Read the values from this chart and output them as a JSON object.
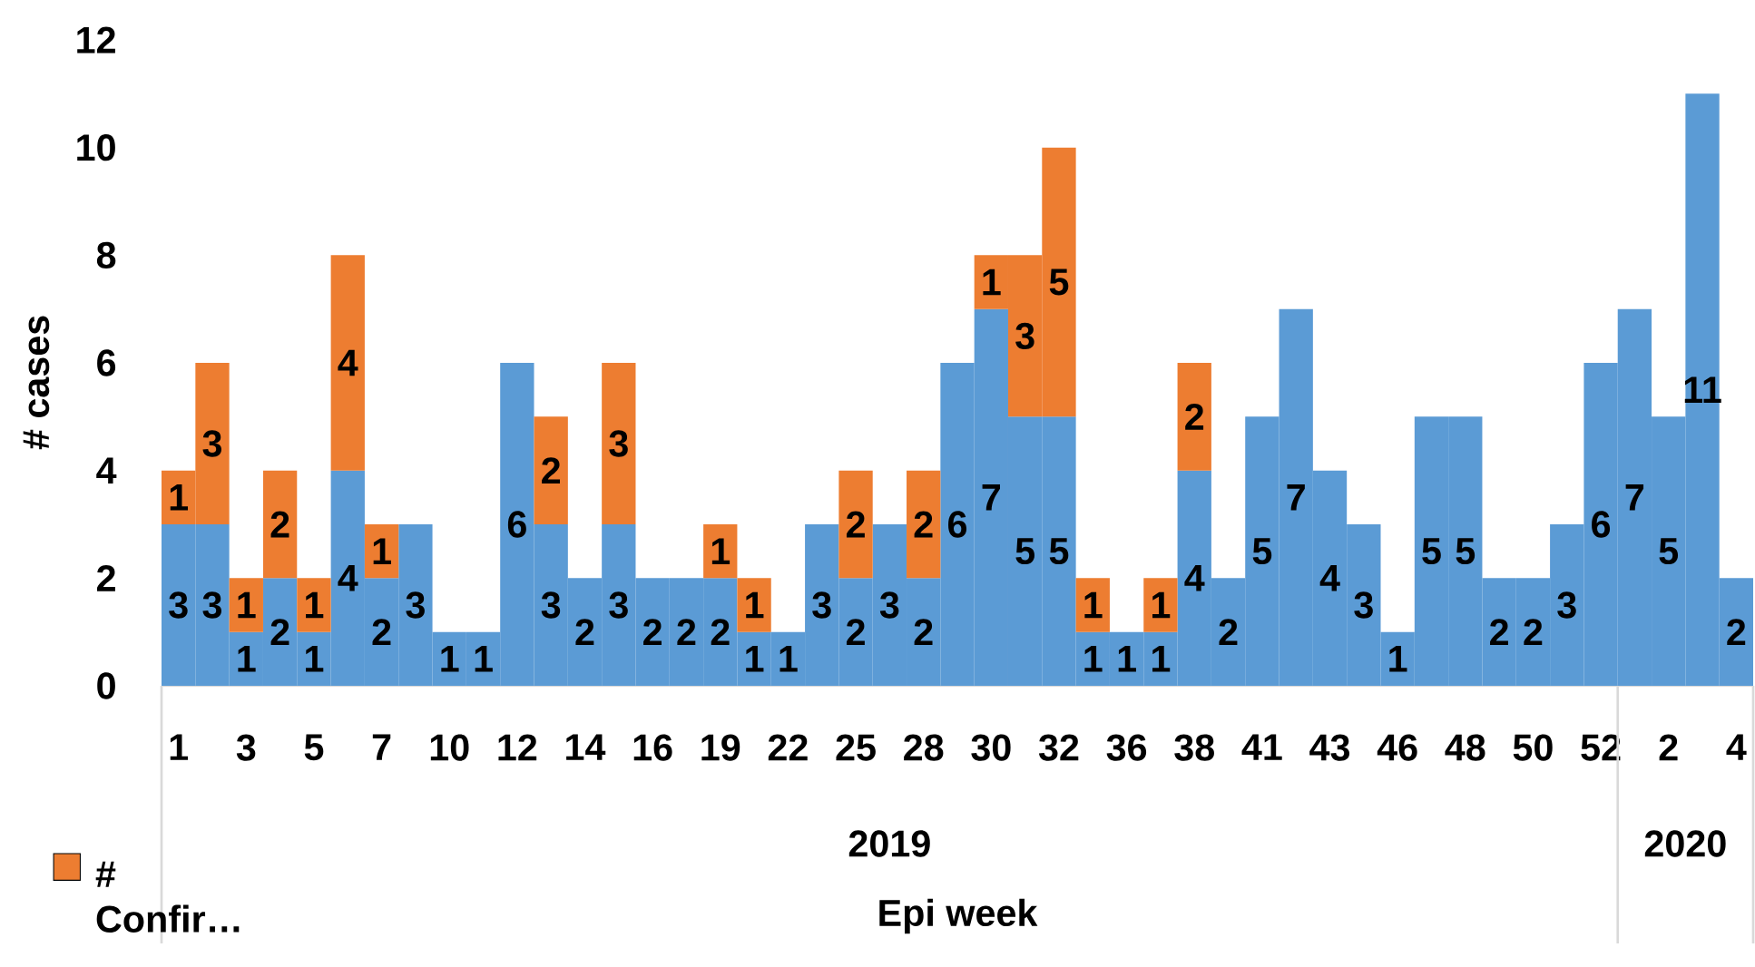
{
  "chart_data": {
    "type": "bar",
    "stacked": true,
    "xlabel": "Epi week",
    "ylabel": "# cases",
    "categories": [
      "1",
      null,
      "3",
      null,
      "5",
      null,
      "7",
      null,
      "10",
      null,
      "12",
      null,
      "14",
      null,
      "16",
      null,
      "19",
      null,
      "22",
      null,
      "25",
      null,
      "28",
      null,
      "30",
      null,
      "32",
      null,
      "36",
      null,
      "38",
      null,
      "41",
      null,
      "43",
      null,
      "46",
      null,
      "48",
      null,
      "50",
      null,
      "52",
      null,
      "2",
      null,
      "4"
    ],
    "series": [
      {
        "color": "#5b9bd5",
        "values": [
          3,
          3,
          1,
          2,
          1,
          4,
          2,
          3,
          1,
          1,
          6,
          3,
          2,
          3,
          2,
          2,
          2,
          1,
          1,
          3,
          2,
          3,
          2,
          6,
          7,
          5,
          5,
          1,
          1,
          1,
          4,
          2,
          5,
          7,
          4,
          3,
          1,
          5,
          5,
          2,
          2,
          3,
          6,
          7,
          5,
          11,
          2
        ]
      },
      {
        "name": "# Confir…",
        "color": "#ed7d31",
        "values": [
          1,
          3,
          1,
          2,
          1,
          4,
          1,
          null,
          null,
          null,
          null,
          2,
          null,
          3,
          null,
          null,
          1,
          1,
          null,
          null,
          2,
          null,
          2,
          null,
          1,
          3,
          5,
          1,
          null,
          1,
          2,
          null,
          null,
          null,
          null,
          null,
          null,
          null,
          null,
          null,
          null,
          null,
          null,
          null,
          null,
          null,
          null
        ]
      }
    ],
    "ylim": [
      0,
      12
    ],
    "yticks": [
      0,
      2,
      4,
      6,
      8,
      10,
      12
    ],
    "data_labels": true,
    "legend": "bottom left",
    "annotations": [
      "2019",
      "2020"
    ]
  }
}
